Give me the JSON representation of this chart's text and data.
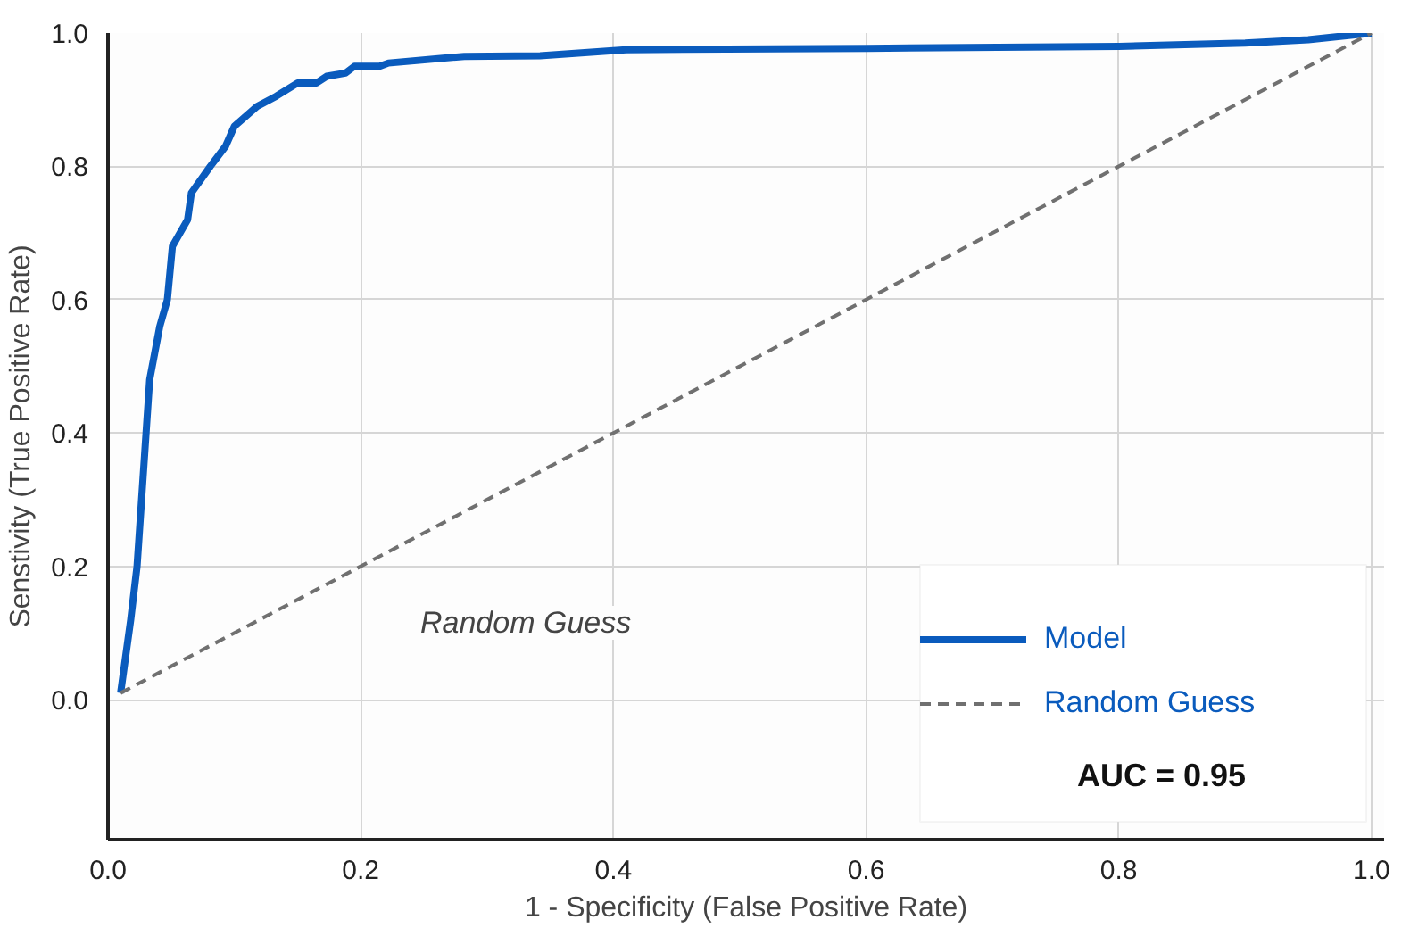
{
  "chart_data": {
    "type": "line",
    "xlabel": "1 - Specificity (False Positive Rate)",
    "ylabel": "Senstivity (True Positive Rate)",
    "xlim": [
      0,
      1.01
    ],
    "ylim": [
      -0.21,
      1.0
    ],
    "xticks": [
      {
        "value": 0,
        "label": "0.0"
      },
      0.2,
      0.4,
      0.6,
      0.8,
      {
        "value": 1,
        "label": "1.0"
      }
    ],
    "yticks": [
      {
        "value": 0,
        "label": "0.0"
      },
      0.2,
      0.4,
      0.6,
      0.8,
      {
        "value": 1,
        "label": "1.0"
      }
    ],
    "grid": true,
    "legend": "bottom right",
    "marker": "none",
    "series": [
      {
        "name": "Model",
        "color": "#0a5bbd",
        "line_style": "solid",
        "x": [
          0.01,
          0.018,
          0.023,
          0.033,
          0.041,
          0.047,
          0.051,
          0.063,
          0.066,
          0.081,
          0.093,
          0.1,
          0.118,
          0.133,
          0.15,
          0.165,
          0.173,
          0.188,
          0.195,
          0.215,
          0.222,
          0.282,
          0.342,
          0.41,
          0.6,
          0.8,
          0.9,
          0.95,
          1.0
        ],
        "values": [
          0.01,
          0.12,
          0.2,
          0.48,
          0.56,
          0.6,
          0.68,
          0.72,
          0.76,
          0.8,
          0.83,
          0.86,
          0.89,
          0.905,
          0.925,
          0.925,
          0.935,
          0.94,
          0.95,
          0.95,
          0.955,
          0.965,
          0.966,
          0.975,
          0.977,
          0.98,
          0.985,
          0.99,
          1.0
        ]
      },
      {
        "name": "Random Guess",
        "color": "#707070",
        "line_style": "dashed",
        "x": [
          0.01,
          1.0
        ],
        "values": [
          0.01,
          1.0
        ]
      }
    ],
    "annotations": [
      "Random Guess",
      "AUC = 0.95"
    ]
  }
}
